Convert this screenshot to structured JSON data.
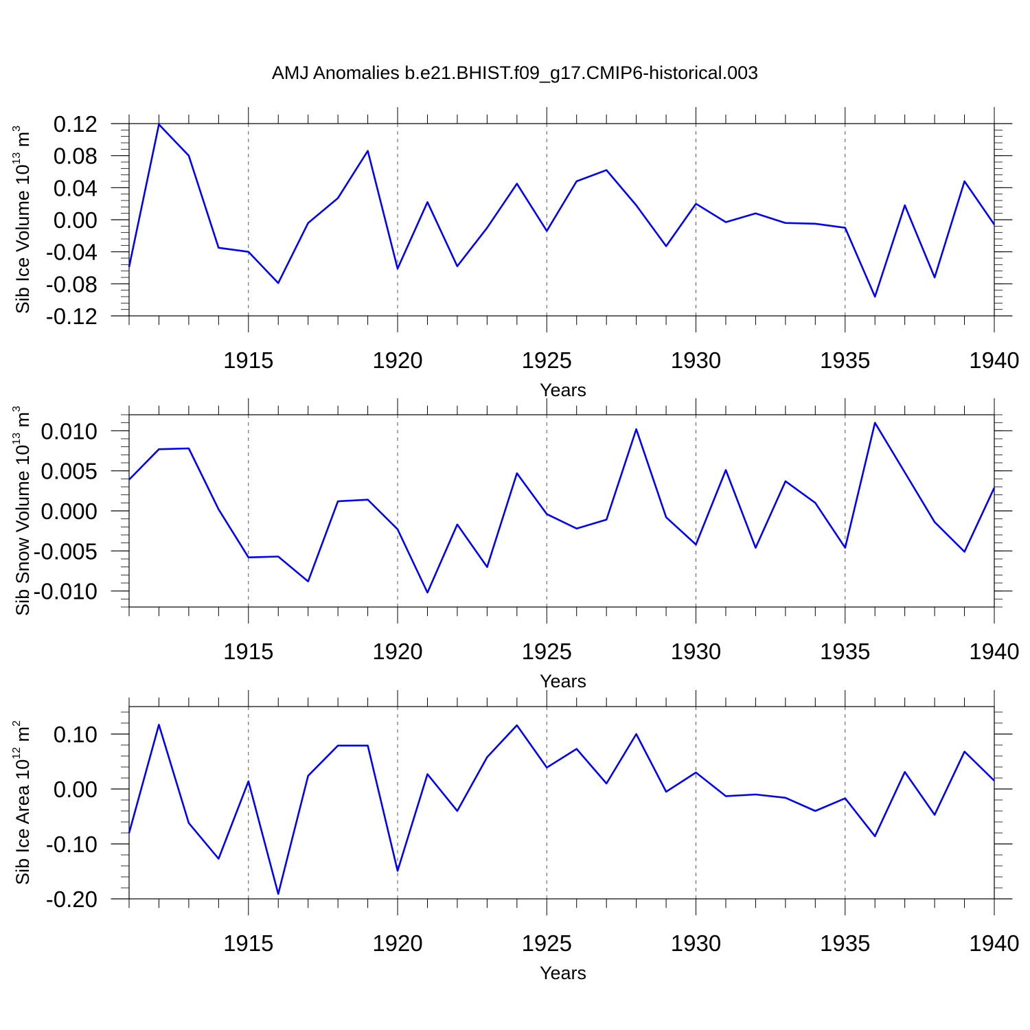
{
  "chart_data": {
    "title": "AMJ Anomalies b.e21.BHIST.f09_g17.CMIP6-historical.003",
    "x": [
      1911,
      1912,
      1913,
      1914,
      1915,
      1916,
      1917,
      1918,
      1919,
      1920,
      1921,
      1922,
      1923,
      1924,
      1925,
      1926,
      1927,
      1928,
      1929,
      1930,
      1931,
      1932,
      1933,
      1934,
      1935,
      1936,
      1937,
      1938,
      1939,
      1940
    ],
    "xlim": [
      1911,
      1940
    ],
    "xticks": [
      "1915",
      "1920",
      "1925",
      "1930",
      "1935",
      "1940"
    ],
    "line_color": "#0000ff",
    "panels": [
      {
        "type": "line",
        "ylabel": "Sib Ice Volume 10",
        "ylabel_exp": "13",
        "ylabel_unit": " m",
        "ylabel_unit_exp": "3",
        "xlabel": "Years",
        "ylim": [
          -0.12,
          0.12
        ],
        "yticks": [
          -0.12,
          -0.08,
          -0.04,
          0.0,
          0.04,
          0.08,
          0.12
        ],
        "ytick_labels": [
          "-0.12",
          "-0.08",
          "-0.04",
          "0.00",
          "0.04",
          "0.08",
          "0.12"
        ],
        "series": [
          {
            "name": "Sib Ice Volume",
            "values": [
              -0.059,
              0.119,
              0.08,
              -0.035,
              -0.04,
              -0.079,
              -0.004,
              0.027,
              0.086,
              -0.061,
              0.022,
              -0.058,
              -0.01,
              0.045,
              -0.014,
              0.048,
              0.062,
              0.018,
              -0.033,
              0.02,
              -0.003,
              0.008,
              -0.004,
              -0.005,
              -0.01,
              -0.096,
              0.018,
              -0.072,
              0.048,
              -0.006
            ]
          }
        ]
      },
      {
        "type": "line",
        "ylabel": "Sib Snow Volume 10",
        "ylabel_exp": "13",
        "ylabel_unit": " m",
        "ylabel_unit_exp": "3",
        "xlabel": "Years",
        "ylim": [
          -0.012,
          0.012
        ],
        "yticks": [
          -0.01,
          -0.005,
          0.0,
          0.005,
          0.01
        ],
        "ytick_labels": [
          "-0.010",
          "-0.005",
          "0.000",
          "0.005",
          "0.010"
        ],
        "series": [
          {
            "name": "Sib Snow Volume",
            "values": [
              0.0039,
              0.0077,
              0.0078,
              0.0002,
              -0.0058,
              -0.0057,
              -0.0088,
              0.0012,
              0.0014,
              -0.0023,
              -0.0102,
              -0.0017,
              -0.007,
              0.0047,
              -0.0004,
              -0.0022,
              -0.0011,
              0.0102,
              -0.0008,
              -0.0042,
              0.0051,
              -0.0046,
              0.0037,
              0.001,
              -0.0046,
              0.011,
              0.0048,
              -0.0014,
              -0.0051,
              0.0029
            ]
          }
        ]
      },
      {
        "type": "line",
        "ylabel": "Sib Ice Area 10",
        "ylabel_exp": "12",
        "ylabel_unit": " m",
        "ylabel_unit_exp": "2",
        "xlabel": "Years",
        "ylim": [
          -0.2,
          0.15
        ],
        "yticks": [
          -0.2,
          -0.1,
          0.0,
          0.1
        ],
        "ytick_labels": [
          "-0.20",
          "-0.10",
          "0.00",
          "0.10"
        ],
        "series": [
          {
            "name": "Sib Ice Area",
            "values": [
              -0.08,
              0.117,
              -0.062,
              -0.127,
              0.014,
              -0.191,
              0.024,
              0.079,
              0.079,
              -0.149,
              0.027,
              -0.04,
              0.058,
              0.116,
              0.039,
              0.073,
              0.01,
              0.1,
              -0.005,
              0.03,
              -0.013,
              -0.01,
              -0.016,
              -0.04,
              -0.017,
              -0.086,
              0.031,
              -0.047,
              0.068,
              0.015
            ]
          }
        ]
      }
    ]
  }
}
